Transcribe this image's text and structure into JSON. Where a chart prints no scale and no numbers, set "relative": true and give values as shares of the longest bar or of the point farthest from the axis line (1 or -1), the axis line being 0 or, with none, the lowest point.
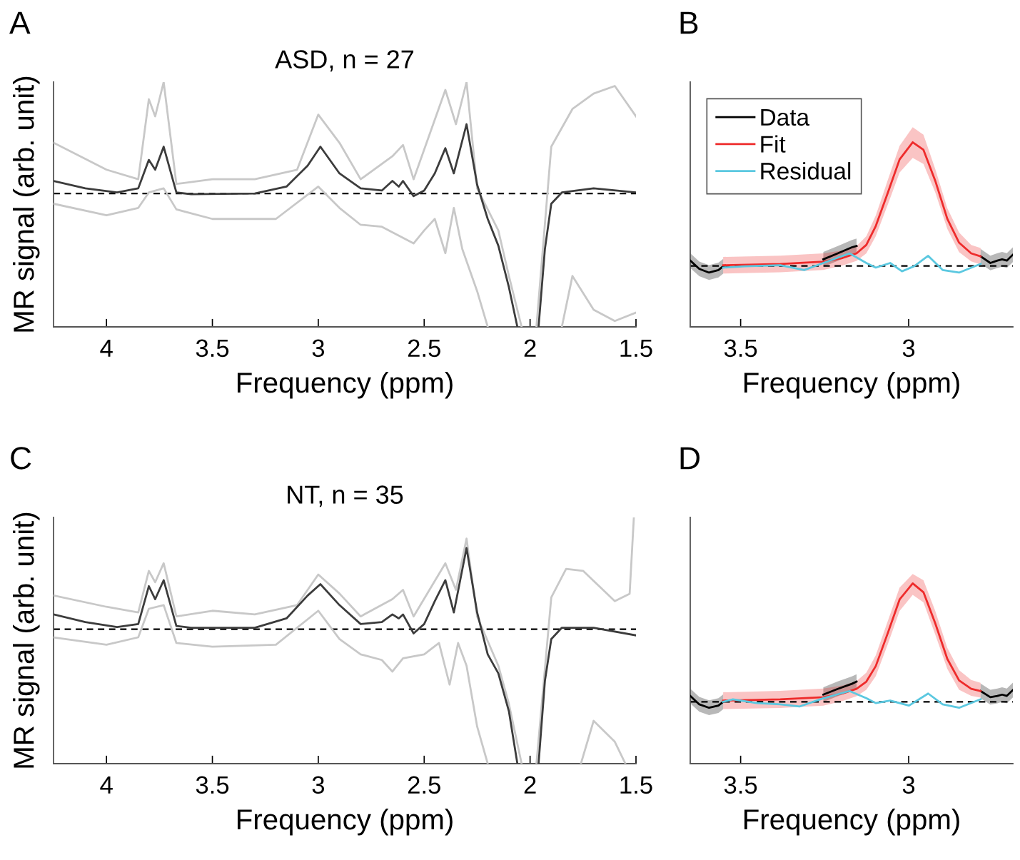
{
  "chart_data": [
    {
      "type": "line",
      "title": "ASD, n = 27",
      "xlabel": "Frequency (ppm)",
      "ylabel": "MR signal (arb. unit)",
      "annotations": [
        "A"
      ],
      "relative": true,
      "xlim": [
        4.25,
        1.5
      ],
      "xticks": [
        4,
        3.5,
        3,
        2.5,
        2,
        1.5
      ],
      "tick_labels": "x",
      "ref_lines": [
        {
          "axis": "y",
          "value": 0.545,
          "color": "#000000",
          "line_style": "dashed"
        }
      ],
      "series": [
        {
          "color": "#c8c8c8",
          "x": [
            4.25,
            4.0,
            3.85,
            3.8,
            3.77,
            3.73,
            3.67,
            3.5,
            3.3,
            3.1,
            3.0,
            2.9,
            2.8,
            2.65,
            2.6,
            2.55,
            2.4,
            2.35,
            2.3,
            2.25,
            2.15,
            2.1,
            2.04,
            2.0,
            1.97,
            1.9,
            1.8,
            1.7,
            1.6,
            1.5
          ],
          "values": [
            0.752,
            0.642,
            0.603,
            0.93,
            0.86,
            1.0,
            0.584,
            0.603,
            0.603,
            0.642,
            0.867,
            0.752,
            0.603,
            0.697,
            0.743,
            0.603,
            0.968,
            0.828,
            1.0,
            0.566,
            0.394,
            0.208,
            0,
            null,
            0,
            0.736,
            0.89,
            0.953,
            0.984,
            0.86
          ]
        },
        {
          "color": "#c8c8c8",
          "x": [
            4.25,
            4.0,
            3.85,
            3.8,
            3.73,
            3.67,
            3.5,
            3.2,
            3.0,
            2.9,
            2.8,
            2.7,
            2.6,
            2.55,
            2.5,
            2.45,
            2.4,
            2.36,
            2.32,
            2.25,
            2.2,
            2.0,
            1.85,
            1.8,
            1.7,
            1.6,
            1.5
          ],
          "values": [
            0.503,
            0.456,
            0.486,
            0.549,
            0.566,
            0.48,
            0.441,
            0.441,
            0.573,
            0.486,
            0.417,
            0.409,
            0.364,
            0.341,
            0.394,
            0.441,
            0.301,
            0.486,
            0.318,
            0.146,
            0,
            null,
            0,
            0.208,
            0.07,
            0.024,
            0.058
          ]
        },
        {
          "color": "#3c3c3c",
          "x": [
            4.25,
            4.1,
            3.95,
            3.85,
            3.8,
            3.77,
            3.73,
            3.67,
            3.6,
            3.3,
            3.15,
            3.05,
            2.99,
            2.9,
            2.8,
            2.7,
            2.65,
            2.62,
            2.6,
            2.55,
            2.5,
            2.45,
            2.4,
            2.36,
            2.3,
            2.25,
            2.2,
            2.15,
            2.1,
            2.06,
            2.0,
            1.96,
            1.93,
            1.9,
            1.85,
            1.7,
            1.5
          ],
          "values": [
            0.596,
            0.566,
            0.549,
            0.566,
            0.682,
            0.642,
            0.736,
            0.549,
            0.542,
            0.545,
            0.573,
            0.659,
            0.736,
            0.627,
            0.566,
            0.557,
            0.596,
            0.573,
            0.596,
            0.534,
            0.557,
            0.627,
            0.73,
            0.627,
            0.828,
            0.581,
            0.441,
            0.332,
            0.162,
            0,
            null,
            0,
            0.318,
            0.503,
            0.549,
            0.566,
            0.549
          ]
        }
      ]
    },
    {
      "type": "line",
      "xlabel": "Frequency (ppm)",
      "annotations": [
        "B"
      ],
      "relative": true,
      "xlim": [
        3.65,
        2.69
      ],
      "xticks": [
        3.5,
        3
      ],
      "tick_labels": "x",
      "legend": "upper left",
      "ref_lines": [
        {
          "axis": "y",
          "value": 0.33,
          "color": "#000000",
          "line_style": "dashed"
        }
      ],
      "series": [
        {
          "name": "Data",
          "color": "#000000",
          "x": [
            3.65,
            3.623,
            3.594,
            3.566,
            3.552,
            3.4,
            3.254,
            3.211,
            3.169,
            3.155,
            3.0,
            2.786,
            2.757,
            2.736,
            2.722,
            2.708,
            2.69
          ],
          "values": [
            0.359,
            0.314,
            0.294,
            0.308,
            0.328,
            null,
            0.366,
            0.398,
            0.431,
            0.438,
            null,
            0.382,
            0.346,
            0.359,
            0.366,
            0.359,
            0.391
          ],
          "lower": [
            0.319,
            0.274,
            0.254,
            0.268,
            0.288,
            null,
            0.326,
            0.358,
            0.391,
            0.398,
            null,
            0.342,
            0.306,
            0.319,
            0.326,
            0.319,
            0.351
          ],
          "upper": [
            0.399,
            0.354,
            0.334,
            0.348,
            0.368,
            null,
            0.406,
            0.438,
            0.471,
            0.478,
            null,
            0.422,
            0.386,
            0.399,
            0.406,
            0.399,
            0.431
          ]
        },
        {
          "name": "Fit",
          "color": "#ee2b2b",
          "x": [
            3.552,
            3.382,
            3.254,
            3.197,
            3.155,
            3.126,
            3.098,
            3.062,
            3.027,
            2.988,
            2.956,
            2.921,
            2.885,
            2.85,
            2.814,
            2.786
          ],
          "values": [
            0.334,
            0.341,
            0.353,
            0.373,
            0.398,
            0.444,
            0.546,
            0.727,
            0.907,
            1,
            0.959,
            0.792,
            0.585,
            0.456,
            0.398,
            0.382
          ],
          "lower": [
            0.289,
            0.296,
            0.308,
            0.332,
            0.358,
            0.398,
            0.491,
            0.663,
            0.836,
            0.915,
            0.882,
            0.729,
            0.531,
            0.405,
            0.355,
            0.338
          ],
          "upper": [
            0.379,
            0.386,
            0.398,
            0.414,
            0.438,
            0.491,
            0.603,
            0.796,
            0.981,
            1.081,
            1.041,
            0.855,
            0.643,
            0.511,
            0.444,
            0.427
          ]
        },
        {
          "name": "Residual",
          "color": "#5bc8e0",
          "x": [
            3.552,
            3.488,
            3.382,
            3.311,
            3.254,
            3.176,
            3.126,
            3.098,
            3.055,
            3.02,
            2.984,
            2.942,
            2.899,
            2.85,
            2.786
          ],
          "values": [
            0.321,
            0.328,
            0.334,
            0.308,
            0.346,
            0.398,
            0.346,
            0.321,
            0.346,
            0.301,
            0.328,
            0.385,
            0.308,
            0.294,
            0.341
          ]
        }
      ]
    },
    {
      "type": "line",
      "title": "NT, n = 35",
      "xlabel": "Frequency (ppm)",
      "ylabel": "MR signal (arb. unit)",
      "annotations": [
        "C"
      ],
      "relative": true,
      "xlim": [
        4.25,
        1.5
      ],
      "xticks": [
        4,
        3.5,
        3,
        2.5,
        2,
        1.5
      ],
      "tick_labels": "x",
      "ref_lines": [
        {
          "axis": "y",
          "value": 0.546,
          "color": "#000000",
          "line_style": "dashed"
        }
      ],
      "series": [
        {
          "color": "#c8c8c8",
          "x": [
            4.25,
            4.0,
            3.85,
            3.8,
            3.77,
            3.73,
            3.67,
            3.5,
            3.3,
            3.1,
            3.0,
            2.9,
            2.8,
            2.65,
            2.6,
            2.55,
            2.4,
            2.35,
            2.3,
            2.25,
            2.15,
            2.1,
            2.04,
            2.0,
            1.97,
            1.9,
            1.83,
            1.75,
            1.6,
            1.53,
            1.51
          ],
          "values": [
            0.683,
            0.637,
            0.614,
            0.783,
            0.737,
            0.814,
            0.598,
            0.621,
            0.606,
            0.644,
            0.768,
            0.691,
            0.598,
            0.668,
            0.706,
            0.598,
            0.814,
            0.706,
            0.914,
            0.598,
            0.398,
            0.243,
            0,
            null,
            0,
            0.675,
            0.791,
            0.783,
            0.66,
            0.69,
            1.0
          ]
        },
        {
          "color": "#c8c8c8",
          "x": [
            4.25,
            4.0,
            3.85,
            3.8,
            3.73,
            3.67,
            3.5,
            3.2,
            3.0,
            2.9,
            2.8,
            2.7,
            2.65,
            2.6,
            2.5,
            2.43,
            2.38,
            2.34,
            2.3,
            2.25,
            2.2,
            2.0,
            1.76,
            1.7,
            1.6,
            1.55
          ],
          "values": [
            0.513,
            0.483,
            0.513,
            0.629,
            0.644,
            0.49,
            0.475,
            0.483,
            0.621,
            0.506,
            0.444,
            0.421,
            0.374,
            0.428,
            0.444,
            0.49,
            0.321,
            0.49,
            0.398,
            0.151,
            0,
            null,
            0,
            0.174,
            0.089,
            0
          ]
        },
        {
          "color": "#3c3c3c",
          "x": [
            4.25,
            4.1,
            3.95,
            3.85,
            3.8,
            3.77,
            3.73,
            3.67,
            3.6,
            3.3,
            3.15,
            3.05,
            2.99,
            2.9,
            2.8,
            2.7,
            2.65,
            2.62,
            2.6,
            2.55,
            2.5,
            2.45,
            2.4,
            2.36,
            2.3,
            2.25,
            2.2,
            2.15,
            2.1,
            2.06,
            2.0,
            1.96,
            1.93,
            1.9,
            1.85,
            1.7,
            1.5
          ],
          "values": [
            0.606,
            0.575,
            0.555,
            0.567,
            0.721,
            0.668,
            0.745,
            0.559,
            0.552,
            0.552,
            0.59,
            0.683,
            0.729,
            0.644,
            0.567,
            0.575,
            0.606,
            0.59,
            0.606,
            0.529,
            0.567,
            0.66,
            0.745,
            0.614,
            0.876,
            0.614,
            0.444,
            0.367,
            0.213,
            0,
            null,
            0,
            0.336,
            0.506,
            0.552,
            0.552,
            0.521
          ]
        }
      ]
    },
    {
      "type": "line",
      "xlabel": "Frequency (ppm)",
      "annotations": [
        "D"
      ],
      "relative": true,
      "xlim": [
        3.65,
        2.69
      ],
      "xticks": [
        3.5,
        3
      ],
      "tick_labels": "x",
      "ref_lines": [
        {
          "axis": "y",
          "value": 0.343,
          "color": "#000000",
          "line_style": "dashed"
        }
      ],
      "series": [
        {
          "color": "#000000",
          "x": [
            3.65,
            3.623,
            3.594,
            3.566,
            3.552,
            3.4,
            3.254,
            3.211,
            3.169,
            3.155,
            3.0,
            2.786,
            2.757,
            2.736,
            2.722,
            2.708,
            2.69
          ],
          "values": [
            0.376,
            0.329,
            0.31,
            0.322,
            0.343,
            null,
            0.383,
            0.415,
            0.443,
            0.455,
            null,
            0.403,
            0.369,
            0.376,
            0.383,
            0.376,
            0.408
          ],
          "lower": [
            0.335,
            0.288,
            0.269,
            0.281,
            0.302,
            null,
            0.342,
            0.374,
            0.402,
            0.414,
            null,
            0.362,
            0.328,
            0.335,
            0.342,
            0.335,
            0.367
          ],
          "upper": [
            0.417,
            0.37,
            0.351,
            0.363,
            0.384,
            null,
            0.424,
            0.456,
            0.484,
            0.496,
            null,
            0.444,
            0.41,
            0.417,
            0.424,
            0.417,
            0.449
          ]
        },
        {
          "color": "#ee2b2b",
          "x": [
            3.552,
            3.382,
            3.254,
            3.197,
            3.155,
            3.126,
            3.098,
            3.062,
            3.027,
            2.988,
            2.956,
            2.921,
            2.885,
            2.85,
            2.814,
            2.786
          ],
          "values": [
            0.35,
            0.357,
            0.369,
            0.389,
            0.415,
            0.455,
            0.541,
            0.725,
            0.911,
            1,
            0.951,
            0.779,
            0.581,
            0.462,
            0.415,
            0.403
          ],
          "lower": [
            0.303,
            0.309,
            0.322,
            0.347,
            0.374,
            0.41,
            0.485,
            0.663,
            0.847,
            0.936,
            0.895,
            0.717,
            0.526,
            0.41,
            0.376,
            0.366
          ],
          "upper": [
            0.396,
            0.404,
            0.417,
            0.434,
            0.458,
            0.505,
            0.601,
            0.792,
            0.977,
            1.052,
            1.018,
            0.847,
            0.642,
            0.519,
            0.464,
            0.448
          ]
        },
        {
          "color": "#5bc8e0",
          "x": [
            3.552,
            3.523,
            3.452,
            3.382,
            3.325,
            3.254,
            3.176,
            3.126,
            3.098,
            3.055,
            2.999,
            2.942,
            2.899,
            2.85,
            2.786
          ],
          "values": [
            0.343,
            0.357,
            0.336,
            0.329,
            0.317,
            0.363,
            0.403,
            0.363,
            0.336,
            0.35,
            0.322,
            0.389,
            0.329,
            0.31,
            0.357
          ]
        }
      ]
    }
  ]
}
